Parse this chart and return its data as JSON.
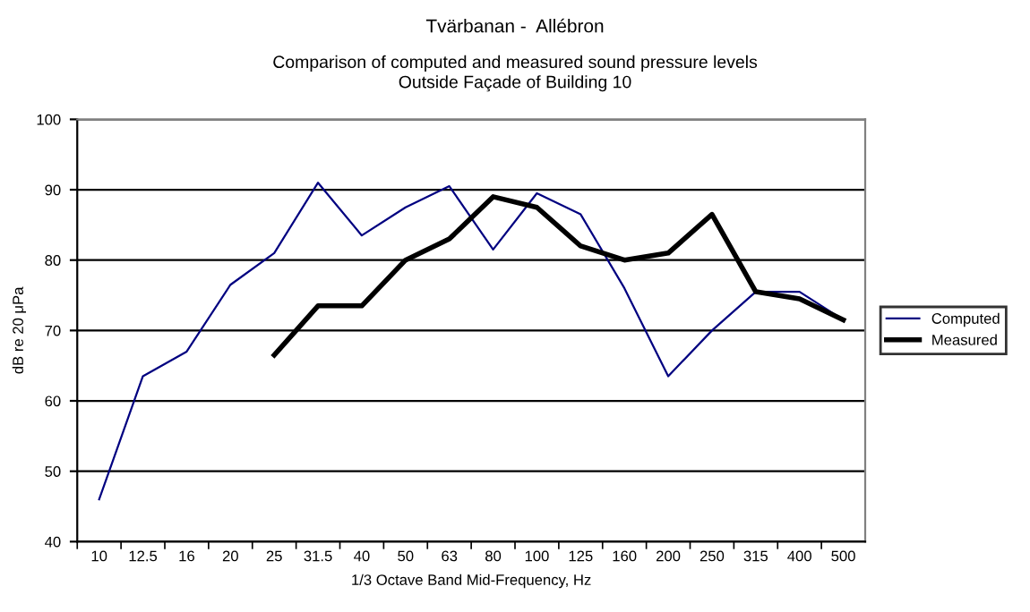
{
  "chart_data": {
    "type": "line",
    "title": "Tvärbanan -  Allébron",
    "subtitle": "Comparison of computed and measured sound pressure levels\nOutside Façade of Building 10",
    "xlabel": "1/3 Octave Band Mid-Frequency, Hz",
    "ylabel": "dB re 20 μPa",
    "categories": [
      "10",
      "12.5",
      "16",
      "20",
      "25",
      "31.5",
      "40",
      "50",
      "63",
      "80",
      "100",
      "125",
      "160",
      "200",
      "250",
      "315",
      "400",
      "500"
    ],
    "series": [
      {
        "name": "Computed",
        "color": "#000080",
        "values": [
          46,
          63.5,
          67,
          76.5,
          81,
          91,
          83.5,
          87.5,
          90.5,
          81.5,
          89.5,
          86.5,
          76,
          63.5,
          70,
          75.5,
          75.5,
          71.5
        ]
      },
      {
        "name": "Measured",
        "color": "#000000",
        "values": [
          null,
          null,
          null,
          null,
          66.5,
          73.5,
          73.5,
          80,
          83,
          89,
          87.5,
          82,
          80,
          81,
          86.5,
          75.5,
          74.5,
          71.5
        ]
      }
    ],
    "ylim": [
      40,
      100
    ],
    "yticks": [
      40,
      50,
      60,
      70,
      80,
      90,
      100
    ],
    "grid": "y",
    "legend": "right",
    "marker": "none",
    "line_style": "solid"
  }
}
